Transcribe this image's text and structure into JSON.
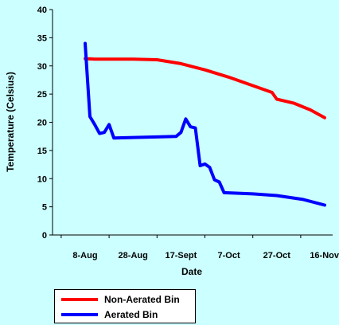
{
  "chart_data": {
    "type": "line",
    "title": "",
    "xlabel": "Date",
    "ylabel": "Temperature (Celsius)",
    "ylim": [
      0,
      40
    ],
    "y_ticks": [
      "0",
      "5",
      "10",
      "15",
      "20",
      "25",
      "30",
      "35",
      "40"
    ],
    "x_ticks": [
      "8-Aug",
      "28-Aug",
      "17-Sept",
      "7-Oct",
      "27-Oct",
      "16-Nov"
    ],
    "grid": false,
    "legend_position": "bottom-left",
    "background_color": "#ccffff",
    "series": [
      {
        "name": "Non-Aerated Bin",
        "color": "#ff0000",
        "points": [
          [
            "8-Aug",
            31.3
          ],
          [
            "12-Aug",
            31.2
          ],
          [
            "20-Aug",
            31.2
          ],
          [
            "28-Aug",
            31.2
          ],
          [
            "7-Sept",
            31.1
          ],
          [
            "17-Sept",
            30.4
          ],
          [
            "27-Sept",
            29.3
          ],
          [
            "7-Oct",
            28.0
          ],
          [
            "17-Oct",
            26.5
          ],
          [
            "25-Oct",
            25.3
          ],
          [
            "27-Oct",
            24.1
          ],
          [
            "3-Nov",
            23.4
          ],
          [
            "10-Nov",
            22.2
          ],
          [
            "16-Nov",
            20.8
          ]
        ]
      },
      {
        "name": "Aerated Bin",
        "color": "#0000ff",
        "points": [
          [
            "8-Aug",
            34.0
          ],
          [
            "10-Aug",
            21.0
          ],
          [
            "12-Aug",
            19.6
          ],
          [
            "14-Aug",
            18.0
          ],
          [
            "16-Aug",
            18.2
          ],
          [
            "18-Aug",
            19.6
          ],
          [
            "20-Aug",
            17.2
          ],
          [
            "28-Aug",
            17.3
          ],
          [
            "7-Sept",
            17.4
          ],
          [
            "15-Sept",
            17.5
          ],
          [
            "17-Sept",
            18.2
          ],
          [
            "19-Sept",
            20.6
          ],
          [
            "21-Sept",
            19.2
          ],
          [
            "23-Sept",
            19.0
          ],
          [
            "25-Sept",
            12.3
          ],
          [
            "27-Sept",
            12.6
          ],
          [
            "29-Sept",
            12.0
          ],
          [
            "1-Oct",
            9.8
          ],
          [
            "3-Oct",
            9.4
          ],
          [
            "5-Oct",
            7.5
          ],
          [
            "17-Oct",
            7.3
          ],
          [
            "27-Oct",
            7.0
          ],
          [
            "7-Nov",
            6.3
          ],
          [
            "16-Nov",
            5.3
          ]
        ]
      }
    ]
  }
}
